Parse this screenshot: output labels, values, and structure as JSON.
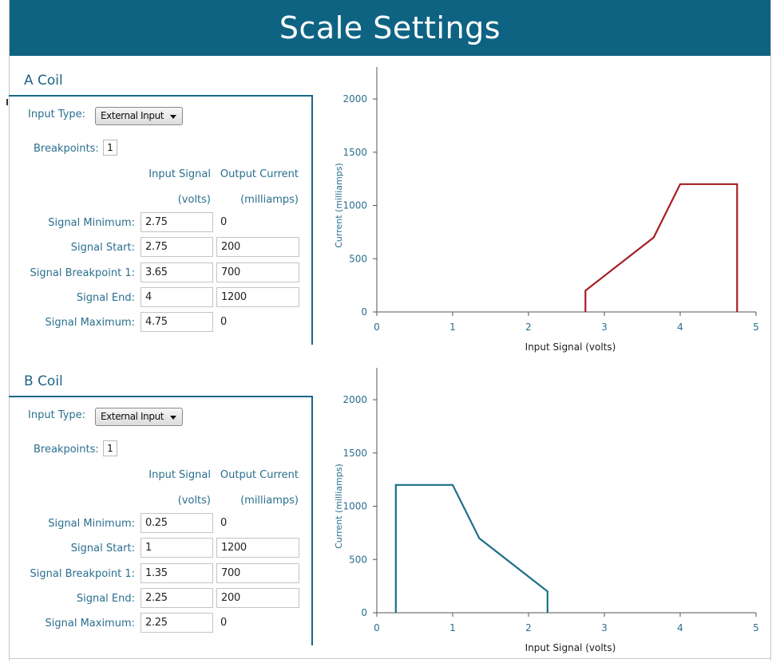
{
  "window": {
    "title": "Scale Settings"
  },
  "columns": {
    "input_header": "Input Signal",
    "input_unit": "(volts)",
    "output_header": "Output Current",
    "output_unit": "(milliamps)"
  },
  "labels": {
    "input_type": "Input Type:",
    "breakpoints": "Breakpoints:",
    "signal_minimum": "Signal Minimum:",
    "signal_start": "Signal Start:",
    "signal_breakpoint_1": "Signal Breakpoint 1:",
    "signal_end": "Signal End:",
    "signal_maximum": "Signal Maximum:"
  },
  "coils": [
    {
      "title": "A Coil",
      "input_type": "External Input",
      "breakpoints": "1",
      "rows": {
        "minimum": {
          "input": "2.75",
          "output": "0"
        },
        "start": {
          "input": "2.75",
          "output": "200"
        },
        "breakpoint_1": {
          "input": "3.65",
          "output": "700"
        },
        "end": {
          "input": "4",
          "output": "1200"
        },
        "maximum": {
          "input": "4.75",
          "output": "0"
        }
      }
    },
    {
      "title": "B Coil",
      "input_type": "External Input",
      "breakpoints": "1",
      "rows": {
        "minimum": {
          "input": "0.25",
          "output": "0"
        },
        "start": {
          "input": "1",
          "output": "1200"
        },
        "breakpoint_1": {
          "input": "1.35",
          "output": "700"
        },
        "end": {
          "input": "2.25",
          "output": "200"
        },
        "maximum": {
          "input": "2.25",
          "output": "0"
        }
      }
    }
  ],
  "chart_data": [
    {
      "type": "line",
      "xlabel": "Input Signal (volts)",
      "ylabel": "Current (milliamps)",
      "xlim": [
        0,
        5
      ],
      "ylim": [
        0,
        2300
      ],
      "xticks": [
        0,
        1,
        2,
        3,
        4,
        5
      ],
      "yticks": [
        0,
        500,
        1000,
        1500,
        2000
      ],
      "x": [
        2.75,
        2.75,
        3.65,
        4,
        4.75,
        4.75
      ],
      "y": [
        0,
        200,
        700,
        1200,
        1200,
        0
      ],
      "color": "#a61e22"
    },
    {
      "type": "line",
      "xlabel": "Input Signal (volts)",
      "ylabel": "Current (milliamps)",
      "xlim": [
        0,
        5
      ],
      "ylim": [
        0,
        2300
      ],
      "xticks": [
        0,
        1,
        2,
        3,
        4,
        5
      ],
      "yticks": [
        0,
        500,
        1000,
        1500,
        2000
      ],
      "x": [
        0.25,
        0.25,
        1,
        1.35,
        2.25,
        2.25
      ],
      "y": [
        0,
        1200,
        1200,
        700,
        200,
        0
      ],
      "color": "#1f6f88"
    }
  ]
}
